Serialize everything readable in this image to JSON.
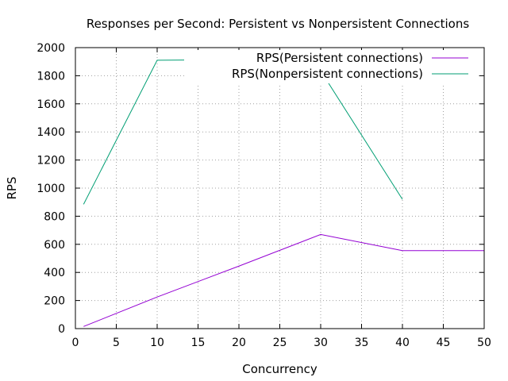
{
  "chart_data": {
    "type": "line",
    "title": "Responses per Second: Persistent vs Nonpersistent Connections",
    "xlabel": "Concurrency",
    "ylabel": "RPS",
    "xlim": [
      0,
      50
    ],
    "ylim": [
      0,
      2000
    ],
    "xticks": [
      0,
      5,
      10,
      15,
      20,
      25,
      30,
      35,
      40,
      45,
      50
    ],
    "yticks": [
      0,
      200,
      400,
      600,
      800,
      1000,
      1200,
      1400,
      1600,
      1800,
      2000
    ],
    "grid": true,
    "legend_position": "top-right",
    "series": [
      {
        "name": "RPS(Persistent connections)",
        "color": "#9400d3",
        "x": [
          1,
          10,
          20,
          30,
          40,
          50
        ],
        "y": [
          15,
          225,
          445,
          670,
          555,
          555
        ]
      },
      {
        "name": "RPS(Nonpersistent connections)",
        "color": "#009e73",
        "x": [
          1,
          10,
          20,
          30,
          40
        ],
        "y": [
          885,
          1910,
          1915,
          1835,
          920
        ]
      }
    ]
  }
}
